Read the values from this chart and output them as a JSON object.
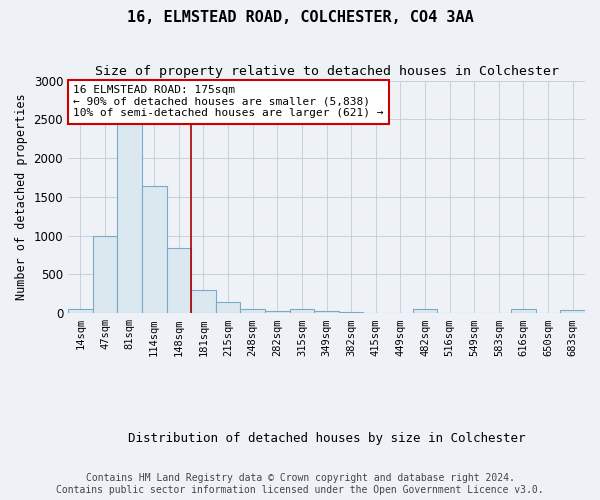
{
  "title": "16, ELMSTEAD ROAD, COLCHESTER, CO4 3AA",
  "subtitle": "Size of property relative to detached houses in Colchester",
  "xlabel": "Distribution of detached houses by size in Colchester",
  "ylabel": "Number of detached properties",
  "footer_line1": "Contains HM Land Registry data © Crown copyright and database right 2024.",
  "footer_line2": "Contains public sector information licensed under the Open Government Licence v3.0.",
  "annotation_line1": "16 ELMSTEAD ROAD: 175sqm",
  "annotation_line2": "← 90% of detached houses are smaller (5,838)",
  "annotation_line3": "10% of semi-detached houses are larger (621) →",
  "bar_labels": [
    "14sqm",
    "47sqm",
    "81sqm",
    "114sqm",
    "148sqm",
    "181sqm",
    "215sqm",
    "248sqm",
    "282sqm",
    "315sqm",
    "349sqm",
    "382sqm",
    "415sqm",
    "449sqm",
    "482sqm",
    "516sqm",
    "549sqm",
    "583sqm",
    "616sqm",
    "650sqm",
    "683sqm"
  ],
  "bar_values": [
    60,
    1000,
    2460,
    1640,
    840,
    300,
    140,
    50,
    30,
    50,
    30,
    10,
    5,
    0,
    50,
    0,
    0,
    0,
    50,
    0,
    40
  ],
  "bar_color": "#dce8f0",
  "bar_edge_color": "#7aaac8",
  "vline_position": 4.5,
  "vline_color": "#aa0000",
  "ylim": [
    0,
    3000
  ],
  "yticks": [
    0,
    500,
    1000,
    1500,
    2000,
    2500,
    3000
  ],
  "background_color": "#eef2f7",
  "plot_bg_color": "#eef2f7",
  "grid_color": "#c0ccd8",
  "title_fontsize": 11,
  "subtitle_fontsize": 9.5,
  "tick_fontsize": 7.5,
  "ylabel_fontsize": 8.5,
  "xlabel_fontsize": 9,
  "annotation_fontsize": 8,
  "footer_fontsize": 7
}
